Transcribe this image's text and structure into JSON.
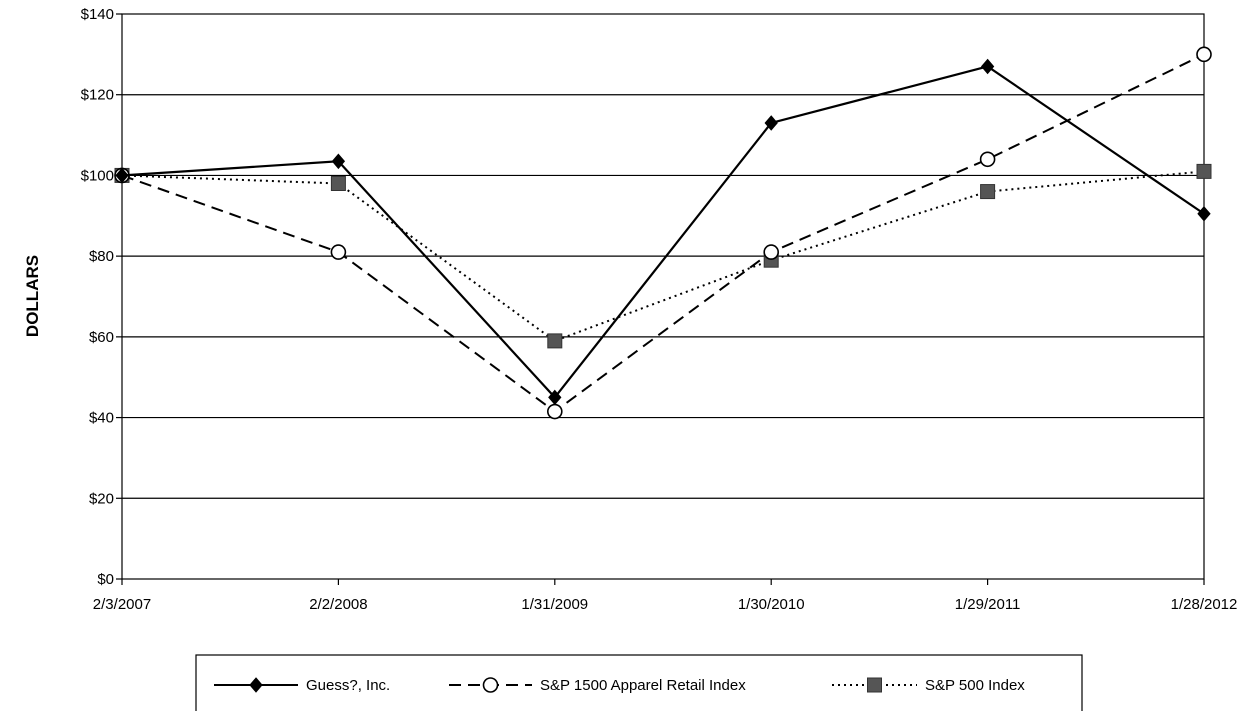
{
  "chart_data": {
    "type": "line",
    "title": "",
    "xlabel": "",
    "ylabel": "DOLLARS",
    "categories": [
      "2/3/2007",
      "2/2/2008",
      "1/31/2009",
      "1/30/2010",
      "1/29/2011",
      "1/28/2012"
    ],
    "ylim": [
      0,
      140
    ],
    "y_ticks": [
      0,
      20,
      40,
      60,
      80,
      100,
      120,
      140
    ],
    "y_tick_labels": [
      "$0",
      "$20",
      "$40",
      "$60",
      "$80",
      "$100",
      "$120",
      "$140"
    ],
    "grid": true,
    "legend_position": "bottom",
    "series": [
      {
        "name": "Guess?, Inc.",
        "values": [
          100,
          103.5,
          45,
          113,
          127,
          90.5
        ],
        "line_style": "solid",
        "marker": "diamond-filled",
        "color": "#000000"
      },
      {
        "name": "S&P 1500 Apparel Retail Index",
        "values": [
          100,
          81,
          41.5,
          81,
          104,
          130
        ],
        "line_style": "dashed",
        "marker": "circle-open",
        "color": "#000000"
      },
      {
        "name": "S&P 500 Index",
        "values": [
          100,
          98,
          59,
          79,
          96,
          101
        ],
        "line_style": "dotted",
        "marker": "square-filled",
        "color": "#555555"
      }
    ]
  }
}
